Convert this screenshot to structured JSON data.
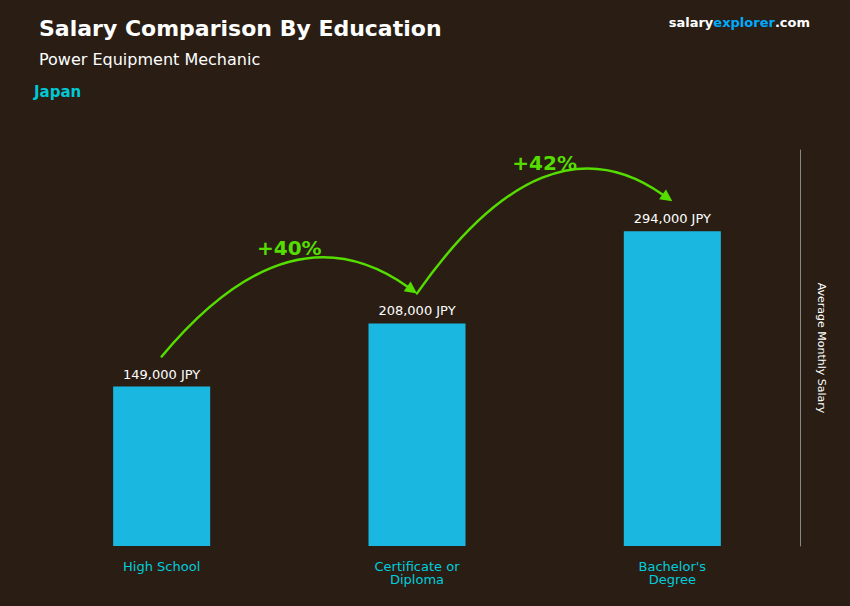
{
  "chart_data": {
    "type": "bar",
    "title": "Salary Comparison By Education",
    "subtitle": "Power Equipment Mechanic",
    "ylabel": "Average Monthly Salary",
    "categories": [
      "High School",
      "Certificate or\nDiploma",
      "Bachelor's\nDegree"
    ],
    "values": [
      149000,
      208000,
      294000
    ],
    "value_labels": [
      "149,000 JPY",
      "208,000 JPY",
      "294,000 JPY"
    ],
    "data_labels": true,
    "color": "#1ab8e0",
    "ylim": [
      0,
      370000
    ],
    "tick_labels": "x",
    "grid": false,
    "annotations": [
      {
        "text": "Japan",
        "color": "#00c8d4"
      },
      {
        "text": "salary",
        "color": "#ffffff"
      },
      {
        "text": "explorer",
        "color": "#00aaff"
      },
      {
        "text": ".com",
        "color": "#ffffff"
      },
      {
        "text": "+40%",
        "from": "High School",
        "to": "Certificate or\nDiploma",
        "color": "#55dd00"
      },
      {
        "text": "+42%",
        "from": "Certificate or\nDiploma",
        "to": "Bachelor's\nDegree",
        "color": "#55dd00"
      }
    ]
  }
}
